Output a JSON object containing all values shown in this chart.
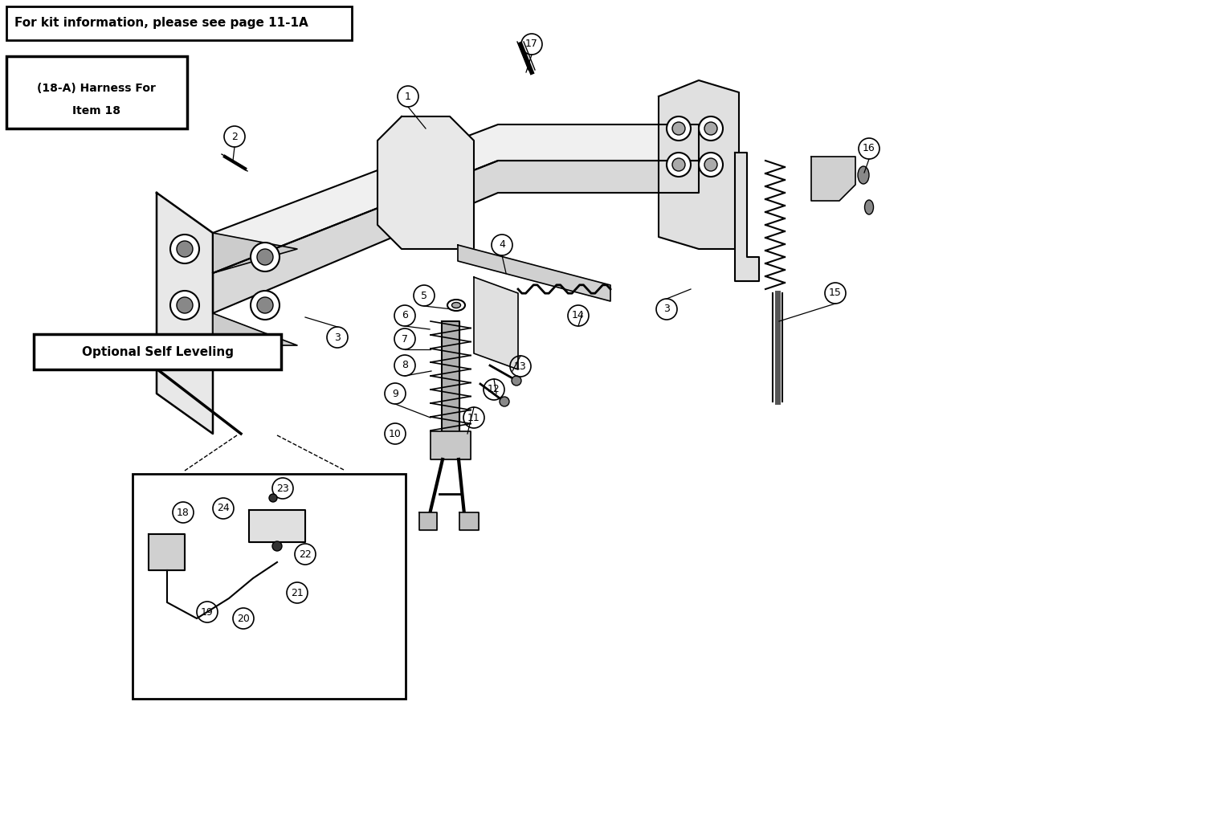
{
  "bg_color": "#ffffff",
  "line_color": "#000000",
  "text_color": "#000000",
  "fig_width": 15.04,
  "fig_height": 10.16,
  "header_text": "For kit information, please see page 11-1A",
  "box1_text_line1": "(18-A) Harness For",
  "box1_text_line2": "Item 18",
  "box2_text": "Optional Self Leveling",
  "part_numbers": [
    1,
    2,
    3,
    4,
    5,
    6,
    7,
    8,
    9,
    10,
    11,
    12,
    13,
    14,
    15,
    16,
    17,
    18,
    19,
    20,
    21,
    22,
    23,
    24
  ]
}
